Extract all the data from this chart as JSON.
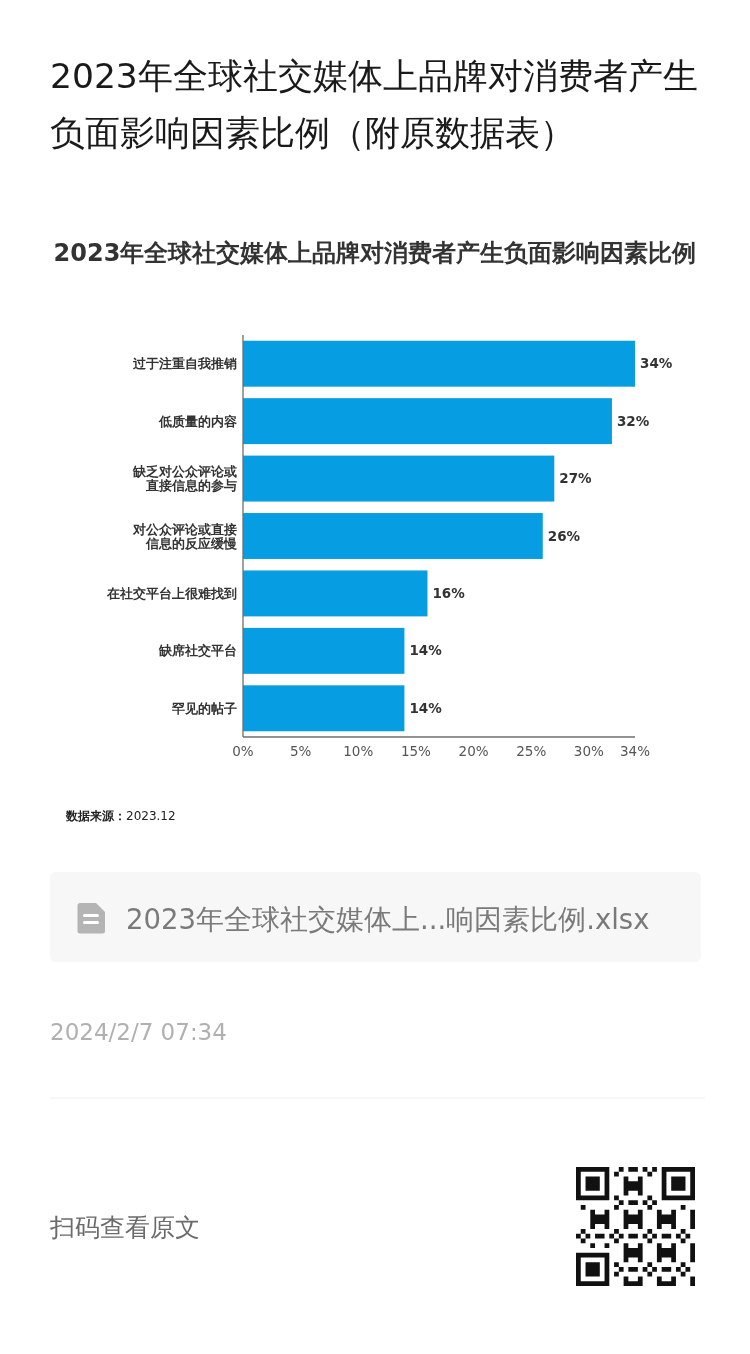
{
  "chart_data": {
    "type": "bar",
    "orientation": "horizontal",
    "title": "2023年全球社交媒体上品牌对消费者产生负面影响因素比例（附原数据表）",
    "subtitle": "2023年全球社交媒体上品牌对消费者产生负面影响因素比例",
    "categories": [
      "过于注重自我推销",
      "低质量的内容",
      "缺乏对公众评论或直接信息的参与",
      "对公众评论或直接信息的反应缓慢",
      "在社交平台上很难找到",
      "缺席社交平台",
      "罕见的帖子"
    ],
    "values": [
      34,
      32,
      27,
      26,
      16,
      14,
      14
    ],
    "color": "#079de2",
    "value_labels": [
      "34%",
      "32%",
      "27%",
      "26%",
      "16%",
      "14%",
      "14%"
    ],
    "xlim": [
      0,
      34
    ],
    "xticks": [
      {
        "value": 0,
        "label": "0%"
      },
      {
        "value": 5,
        "label": "5%"
      },
      {
        "value": 10,
        "label": "10%"
      },
      {
        "value": 15,
        "label": "15%"
      },
      {
        "value": 20,
        "label": "20%"
      },
      {
        "value": 25,
        "label": "25%"
      },
      {
        "value": 30,
        "label": "30%"
      },
      {
        "value": 34,
        "label": "34%"
      }
    ],
    "annotations": [
      "**数据来源：**2023.12",
      "2023年全球社交媒体上...响因素比例.xlsx",
      "2024/2/7 07:34",
      "扫码查看原文"
    ]
  }
}
